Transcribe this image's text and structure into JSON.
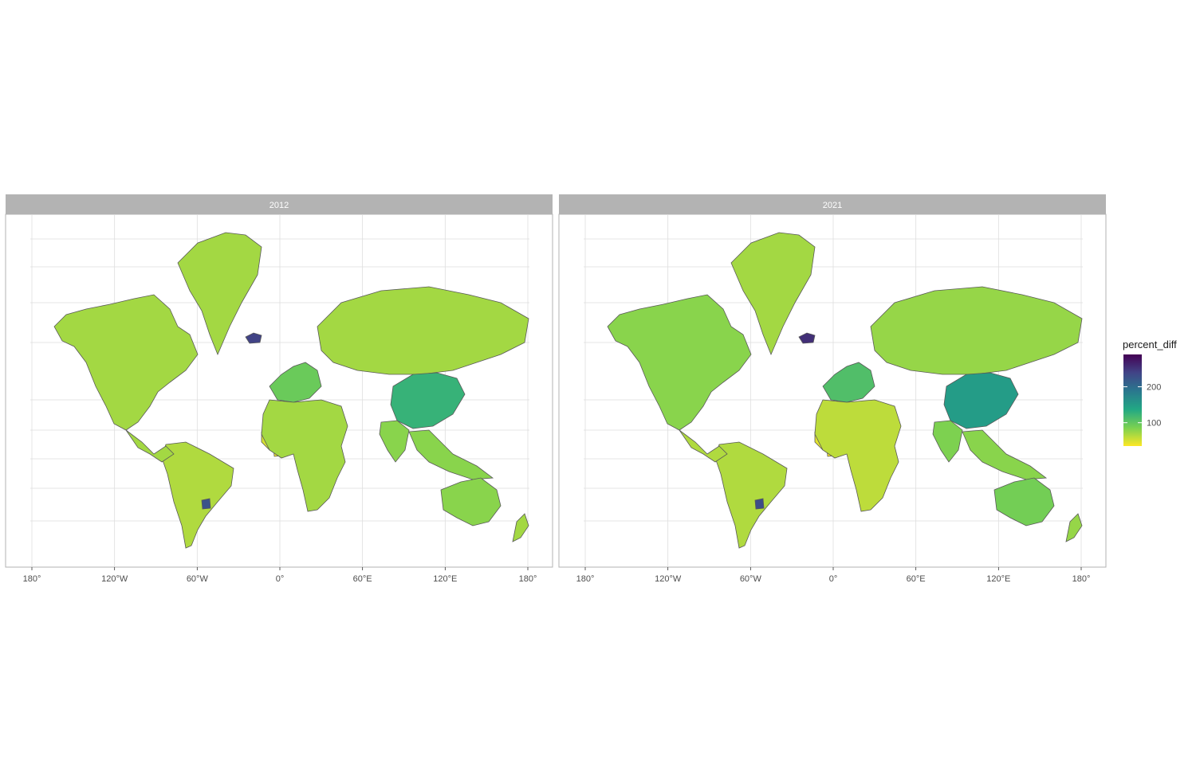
{
  "chart_data": [
    {
      "type": "choropleth",
      "facet_label": "2012",
      "x_ticks": [
        "180°",
        "120°W",
        "60°W",
        "0°",
        "60°E",
        "120°E",
        "180°"
      ],
      "x_tick_values": [
        -180,
        -120,
        -60,
        0,
        60,
        120,
        180
      ],
      "grid": true,
      "regions": [
        {
          "region": "North America",
          "percent_diff": 70
        },
        {
          "region": "Greenland",
          "percent_diff": 70
        },
        {
          "region": "Iceland",
          "percent_diff": 240
        },
        {
          "region": "Russia",
          "percent_diff": 70
        },
        {
          "region": "China",
          "percent_diff": 125
        },
        {
          "region": "Western Europe",
          "percent_diff": 95
        },
        {
          "region": "South America",
          "percent_diff": 65
        },
        {
          "region": "Uruguay",
          "percent_diff": 225
        },
        {
          "region": "Sahel",
          "percent_diff": 50
        },
        {
          "region": "Ghana",
          "percent_diff": 40
        },
        {
          "region": "South Sudan",
          "percent_diff": null
        },
        {
          "region": "Africa (other)",
          "percent_diff": 70
        },
        {
          "region": "India",
          "percent_diff": 80
        },
        {
          "region": "Southeast Asia",
          "percent_diff": 80
        },
        {
          "region": "Australia",
          "percent_diff": 80
        },
        {
          "region": "New Zealand",
          "percent_diff": 70
        },
        {
          "region": "Central America",
          "percent_diff": 70
        }
      ]
    },
    {
      "type": "choropleth",
      "facet_label": "2021",
      "x_ticks": [
        "180°",
        "120°W",
        "60°W",
        "0°",
        "60°E",
        "120°E",
        "180°"
      ],
      "x_tick_values": [
        -180,
        -120,
        -60,
        0,
        60,
        120,
        180
      ],
      "grid": true,
      "regions": [
        {
          "region": "North America",
          "percent_diff": 80
        },
        {
          "region": "Greenland",
          "percent_diff": 70
        },
        {
          "region": "Iceland",
          "percent_diff": 255
        },
        {
          "region": "Russia",
          "percent_diff": 75
        },
        {
          "region": "China",
          "percent_diff": 150
        },
        {
          "region": "Western Europe",
          "percent_diff": 110
        },
        {
          "region": "South America",
          "percent_diff": 65
        },
        {
          "region": "Uruguay",
          "percent_diff": 230
        },
        {
          "region": "Sahel",
          "percent_diff": 45
        },
        {
          "region": "Ghana",
          "percent_diff": 35
        },
        {
          "region": "South Sudan",
          "percent_diff": null
        },
        {
          "region": "Africa (other)",
          "percent_diff": 60
        },
        {
          "region": "India",
          "percent_diff": 85
        },
        {
          "region": "Southeast Asia",
          "percent_diff": 80
        },
        {
          "region": "Australia",
          "percent_diff": 90
        },
        {
          "region": "New Zealand",
          "percent_diff": 75
        },
        {
          "region": "Central America",
          "percent_diff": 65
        }
      ]
    }
  ],
  "legend": {
    "title": "percent_diff",
    "ticks": [
      "100",
      "200"
    ],
    "tick_values": [
      100,
      200
    ],
    "range": [
      35,
      290
    ]
  },
  "colors": {
    "panel_border": "#b3b3b3",
    "strip_fill": "#b3b3b3",
    "grid": "#dedede",
    "country_border": "#595959",
    "missing": "#7f7f7f"
  }
}
